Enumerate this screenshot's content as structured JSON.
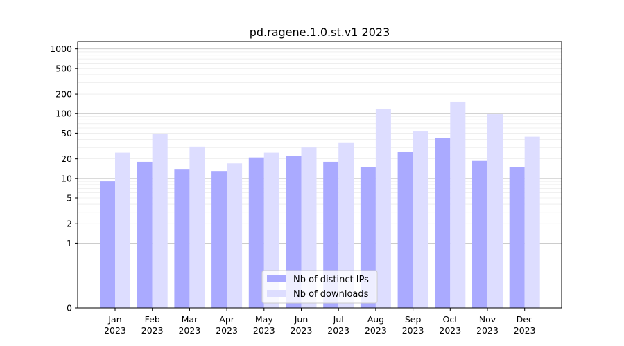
{
  "chart_data": {
    "type": "bar",
    "title": "pd.ragene.1.0.st.v1 2023",
    "xlabel": "",
    "ylabel": "",
    "yscale": "symlog",
    "ylim": [
      0,
      1300
    ],
    "yticks": [
      0,
      1,
      2,
      5,
      10,
      20,
      50,
      100,
      200,
      500,
      1000
    ],
    "ytick_labels": [
      "0",
      "1",
      "2",
      "5",
      "10",
      "20",
      "50",
      "100",
      "200",
      "500",
      "1000"
    ],
    "categories": [
      {
        "month": "Jan",
        "year": "2023"
      },
      {
        "month": "Feb",
        "year": "2023"
      },
      {
        "month": "Mar",
        "year": "2023"
      },
      {
        "month": "Apr",
        "year": "2023"
      },
      {
        "month": "May",
        "year": "2023"
      },
      {
        "month": "Jun",
        "year": "2023"
      },
      {
        "month": "Jul",
        "year": "2023"
      },
      {
        "month": "Aug",
        "year": "2023"
      },
      {
        "month": "Sep",
        "year": "2023"
      },
      {
        "month": "Oct",
        "year": "2023"
      },
      {
        "month": "Nov",
        "year": "2023"
      },
      {
        "month": "Dec",
        "year": "2023"
      }
    ],
    "series": [
      {
        "name": "Nb of distinct IPs",
        "color": "#aaaaff",
        "values": [
          9,
          18,
          14,
          13,
          21,
          22,
          18,
          15,
          26,
          42,
          19,
          15
        ]
      },
      {
        "name": "Nb of downloads",
        "color": "#ddddff",
        "values": [
          25,
          49,
          31,
          17,
          25,
          30,
          36,
          118,
          53,
          153,
          98,
          44
        ]
      }
    ],
    "grid": true,
    "legend_position": "bottom-center"
  }
}
